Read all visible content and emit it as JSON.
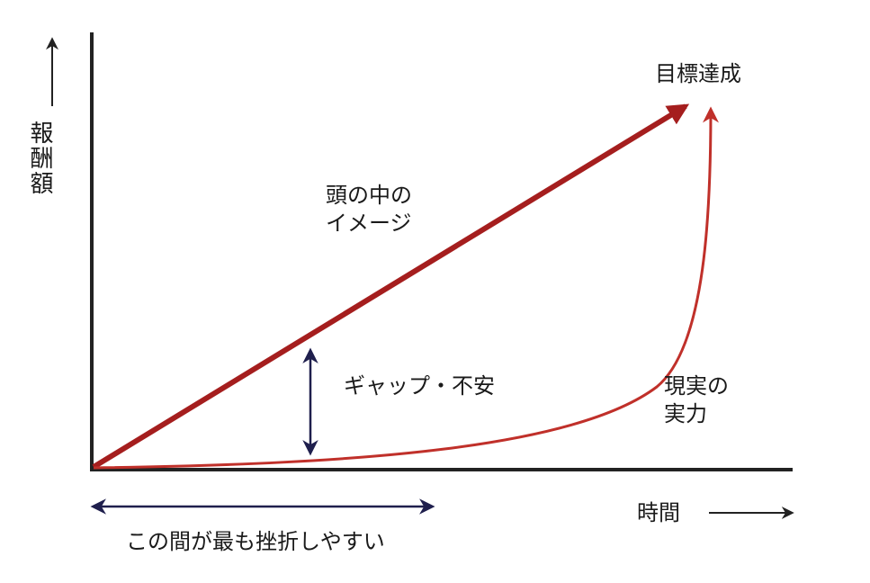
{
  "y_axis_label": "報酬額",
  "goal_label": "目標達成",
  "image_label": [
    "頭の中の",
    "イメージ"
  ],
  "gap_label": "ギャップ・不安",
  "reality_label": [
    "現実の",
    "実力"
  ],
  "x_axis_label": "時間",
  "period_label": "この間が最も挫折しやすい"
}
